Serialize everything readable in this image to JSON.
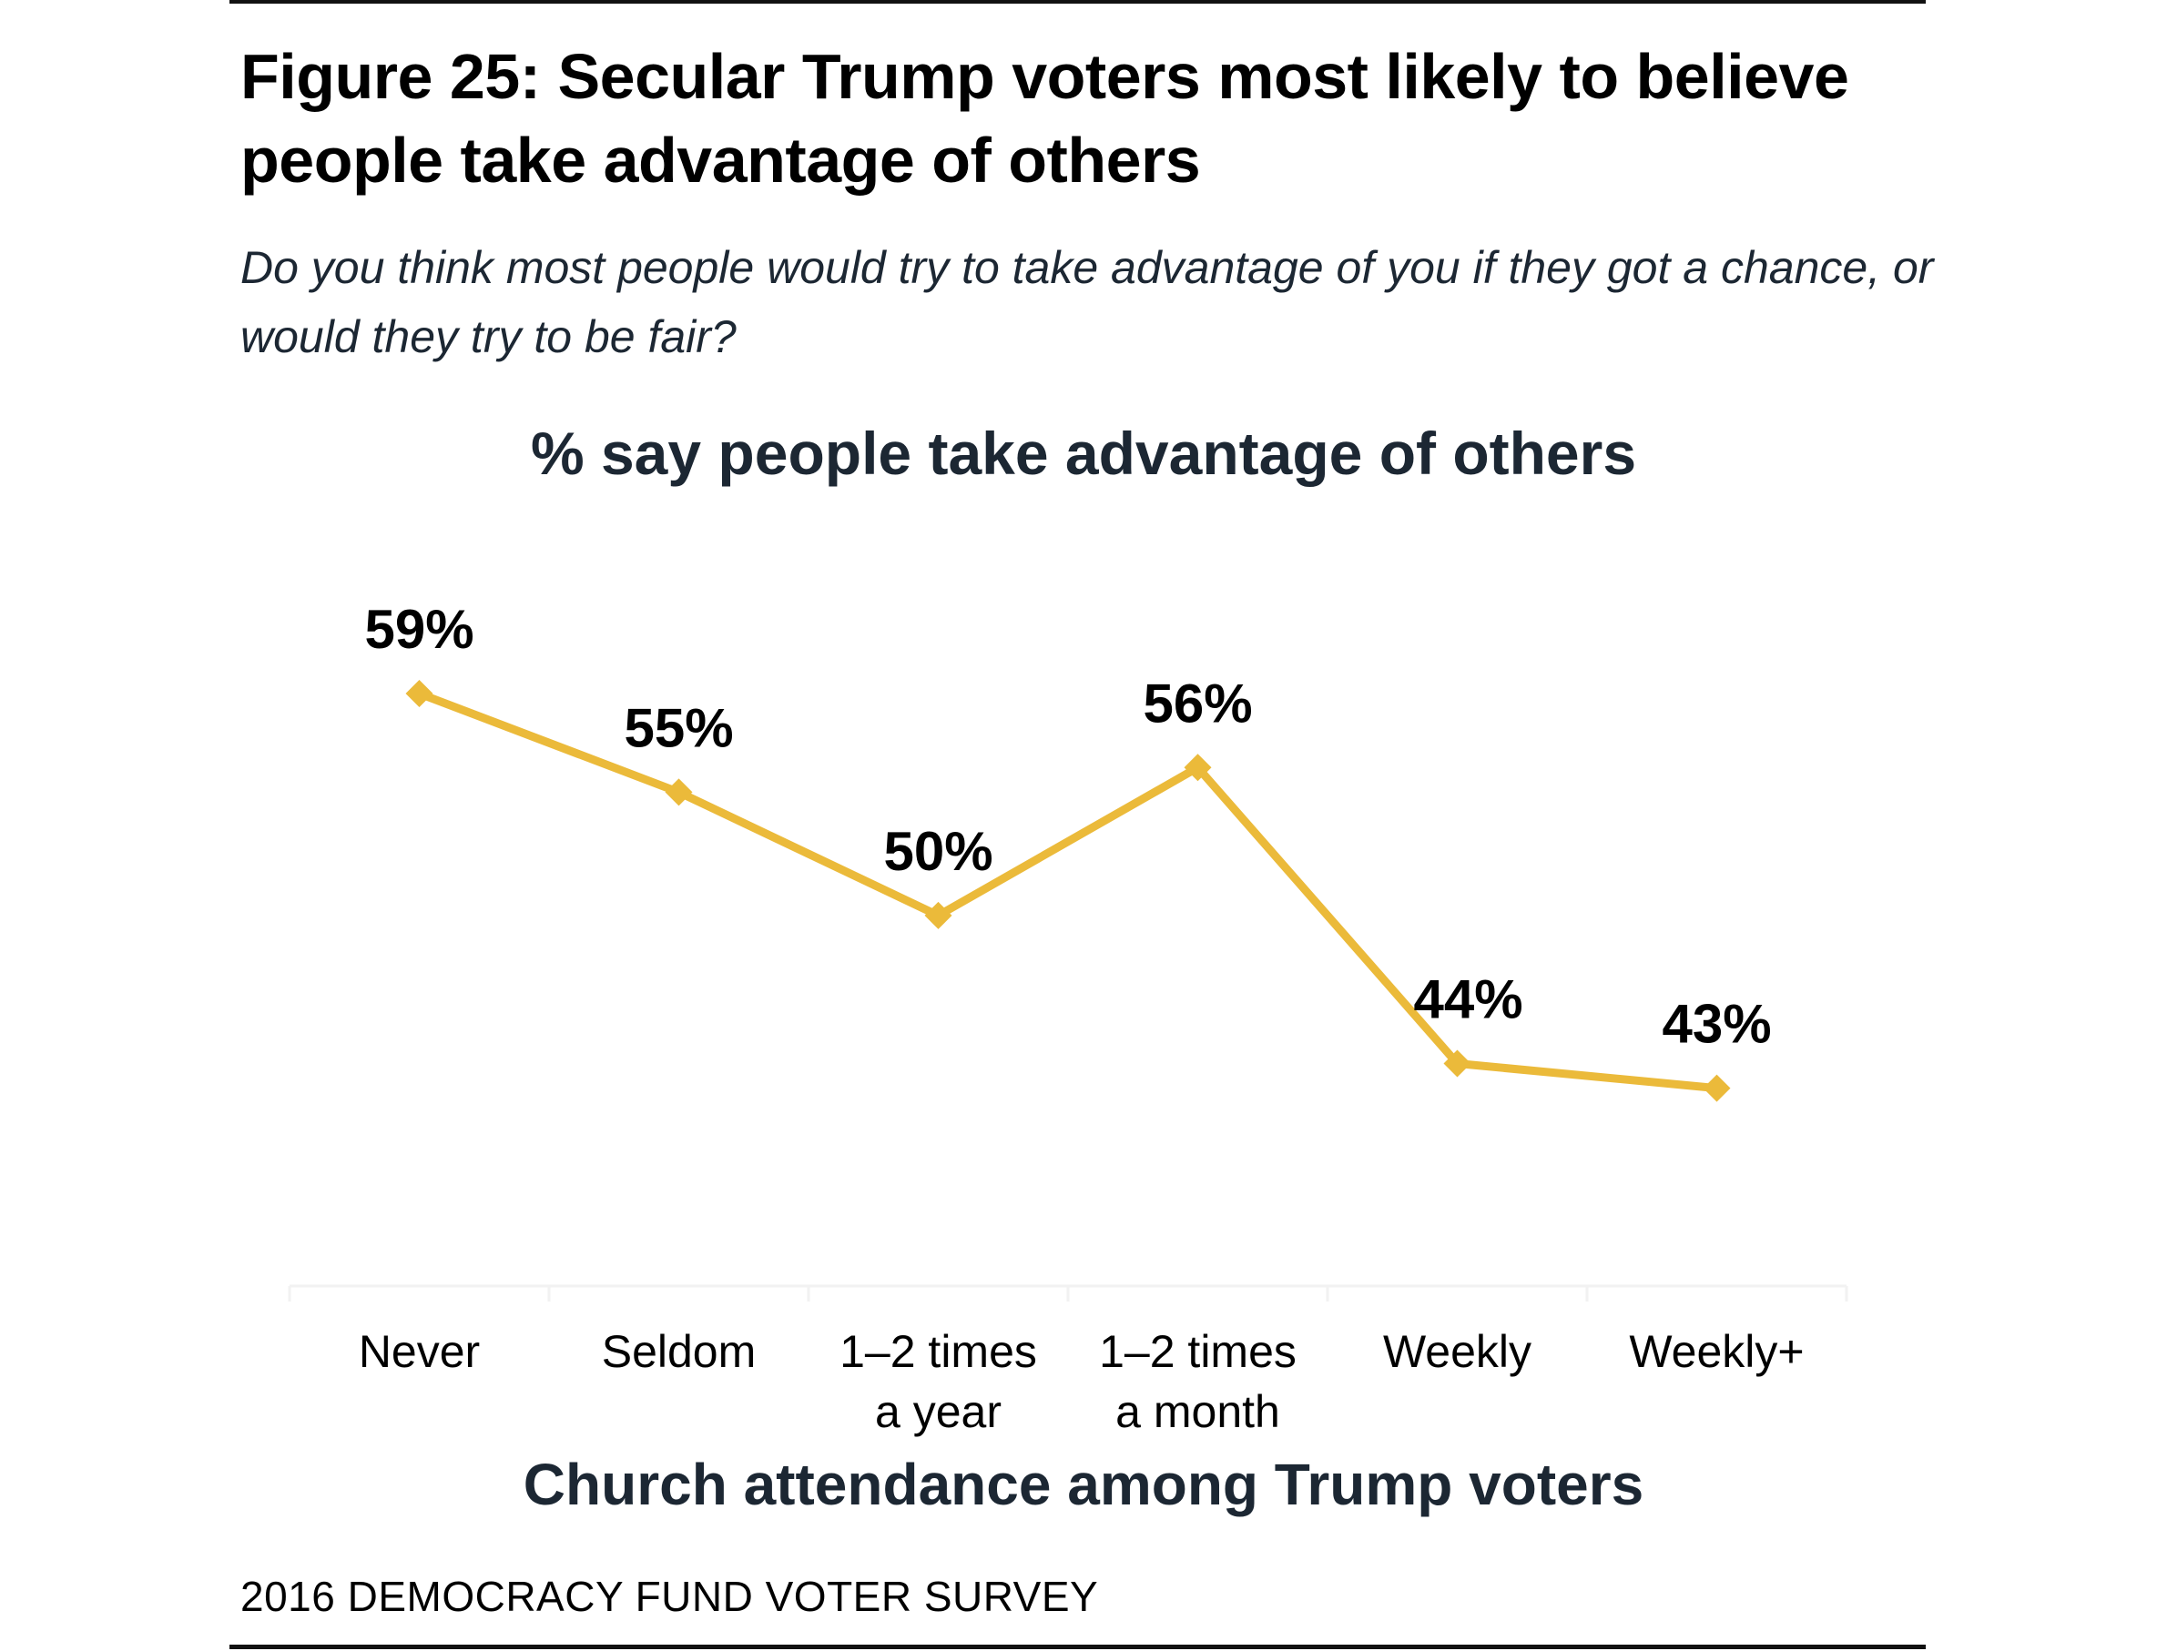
{
  "figure": {
    "title": "Figure 25: Secular Trump voters most likely to believe people take advantage of others",
    "subtitle": "Do you think most people would try to take advantage of you if they got a chance, or would they try to be fair?",
    "source": "2016 DEMOCRACY FUND VOTER SURVEY"
  },
  "colors": {
    "line": "#EBBA3A",
    "text_dark": "#1c2733",
    "axis": "#F2F2F2"
  },
  "chart_data": {
    "type": "line",
    "title": "% say people take advantage of others",
    "xlabel": "Church attendance among Trump voters",
    "ylabel": "",
    "categories": [
      [
        "Never"
      ],
      [
        "Seldom"
      ],
      [
        "1–2 times",
        "a year"
      ],
      [
        "1–2 times",
        "a month"
      ],
      [
        "Weekly"
      ],
      [
        "Weekly+"
      ]
    ],
    "series": [
      {
        "name": "% say people take advantage of others",
        "values": [
          59,
          55,
          50,
          56,
          44,
          43
        ],
        "labels": [
          "59%",
          "55%",
          "50%",
          "56%",
          "44%",
          "43%"
        ],
        "marker": "diamond"
      }
    ],
    "ylim": [
      40,
      62
    ],
    "grid": false,
    "legend": "none"
  }
}
